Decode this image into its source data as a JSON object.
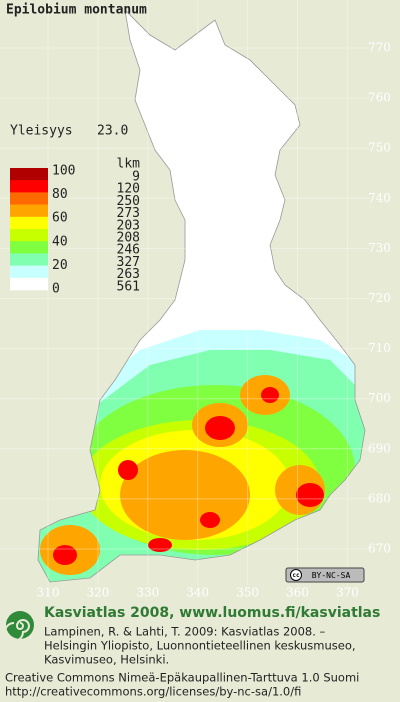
{
  "title": "Epilobium montanum",
  "frequency_label": "Yleisyys",
  "frequency": "23.0",
  "legend": {
    "scale_labels": [
      100,
      80,
      60,
      40,
      20,
      0
    ],
    "count_header": "lkm",
    "classes": [
      {
        "color": "#b00000",
        "count": 9
      },
      {
        "color": "#ff0000",
        "count": 120
      },
      {
        "color": "#ff6a00",
        "count": 250
      },
      {
        "color": "#ffa500",
        "count": 273
      },
      {
        "color": "#ffff00",
        "count": 203
      },
      {
        "color": "#c8ff00",
        "count": 208
      },
      {
        "color": "#80ff40",
        "count": 246
      },
      {
        "color": "#80ffb0",
        "count": 327
      },
      {
        "color": "#c8ffff",
        "count": 263
      },
      {
        "color": "#ffffff",
        "count": 561
      }
    ]
  },
  "y_ticks": [
    770,
    760,
    750,
    740,
    730,
    720,
    710,
    700,
    690,
    680,
    670
  ],
  "x_ticks": [
    310,
    320,
    330,
    340,
    350,
    360,
    370
  ],
  "badge": {
    "icon": "cc",
    "text": "BY-NC-SA"
  },
  "footer": {
    "heading": "Kasviatlas 2008, www.luomus.fi/kasviatlas",
    "citation": [
      "Lampinen, R. & Lahti, T. 2009: Kasviatlas 2008. –",
      "Helsingin Yliopisto, Luonnontieteellinen keskusmuseo,",
      "Kasvimuseo, Helsinki."
    ],
    "license": [
      "Creative Commons Nimeä-Epäkaupallinen-Tarttuva 1.0 Suomi",
      "http://creativecommons.org/licenses/by-nc-sa/1.0/fi"
    ]
  }
}
